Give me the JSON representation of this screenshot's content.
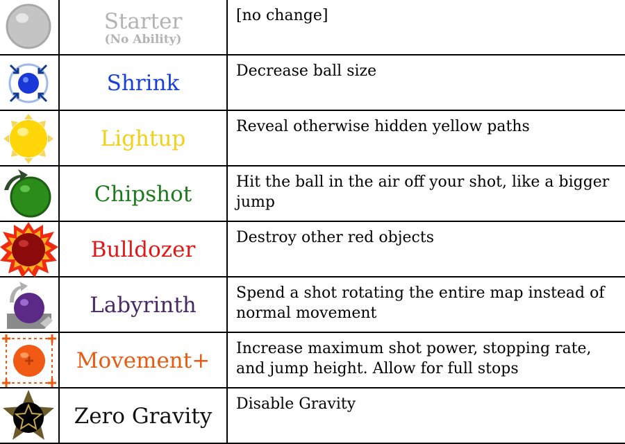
{
  "rows": [
    {
      "name": "Starter",
      "sub": "(No Ability)",
      "desc": "[no change]",
      "color": "#b3b3b3",
      "icon": "grey-ball-icon"
    },
    {
      "name": "Shrink",
      "desc": "Decrease ball size",
      "color": "#1a3fd6",
      "icon": "shrink-ball-icon"
    },
    {
      "name": "Lightup",
      "desc": "Reveal otherwise hidden yellow paths",
      "color": "#f2cf18",
      "icon": "sun-ball-icon"
    },
    {
      "name": "Chipshot",
      "desc": "Hit the ball in the air off your shot, like a bigger jump",
      "color": "#1d7a1d",
      "icon": "chipshot-ball-icon"
    },
    {
      "name": "Bulldozer",
      "desc": "Destroy other red objects",
      "color": "#e01818",
      "icon": "flame-ball-icon"
    },
    {
      "name": "Labyrinth",
      "desc": "Spend a shot rotating the entire map instead of normal movement",
      "color": "#4a2a66",
      "icon": "rotate-ball-icon"
    },
    {
      "name": "Movement+",
      "desc": "Increase maximum shot power, stopping rate, and jump height. Allow for full stops",
      "color": "#e65a12",
      "icon": "movement-ball-icon"
    },
    {
      "name": "Zero Gravity",
      "desc": "Disable Gravity",
      "color": "#000000",
      "icon": "star-ball-icon"
    }
  ]
}
